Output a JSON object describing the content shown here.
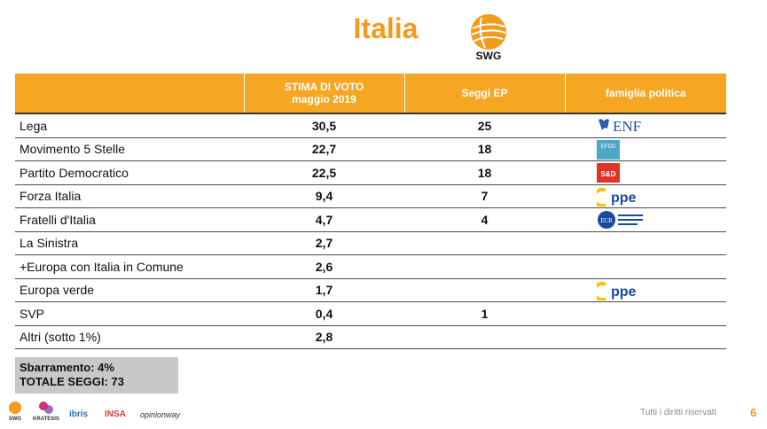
{
  "title": "Italia",
  "brand": "SWG",
  "table": {
    "headers": {
      "party": "",
      "vote_line1": "STIMA DI VOTO",
      "vote_line2": "maggio 2019",
      "seats": "Seggi EP",
      "family": "famiglia politica"
    },
    "rows": [
      {
        "party": "Lega",
        "vote": "30,5",
        "seats": "25",
        "family_icon": "enf-logo-icon",
        "family_label": "ENF"
      },
      {
        "party": "Movimento 5 Stelle",
        "vote": "22,7",
        "seats": "18",
        "family_icon": "efdd-logo-icon",
        "family_label": "EFDD"
      },
      {
        "party": "Partito Democratico",
        "vote": "22,5",
        "seats": "18",
        "family_icon": "sd-logo-icon",
        "family_label": "S&D"
      },
      {
        "party": "Forza Italia",
        "vote": "9,4",
        "seats": "7",
        "family_icon": "ppe-logo-icon",
        "family_label": "ppe"
      },
      {
        "party": "Fratelli d'Italia",
        "vote": "4,7",
        "seats": "4",
        "family_icon": "ecr-logo-icon",
        "family_label": "ECR"
      },
      {
        "party": "La Sinistra",
        "vote": "2,7",
        "seats": "",
        "family_icon": "",
        "family_label": ""
      },
      {
        "party": "+Europa con Italia in Comune",
        "vote": "2,6",
        "seats": "",
        "family_icon": "",
        "family_label": ""
      },
      {
        "party": "Europa verde",
        "vote": "1,7",
        "seats": "",
        "family_icon": "ppe-logo-icon",
        "family_label": "ppe"
      },
      {
        "party": "SVP",
        "vote": "0,4",
        "seats": "1",
        "family_icon": "",
        "family_label": ""
      },
      {
        "party": "Altri (sotto 1%)",
        "vote": "2,8",
        "seats": "",
        "family_icon": "",
        "family_label": ""
      }
    ]
  },
  "summary": {
    "line1": "Sbarramento: 4%",
    "line2": "TOTALE SEGGI: 73"
  },
  "footer": {
    "logos": [
      "SWG",
      "KRATESIS",
      "ibris",
      "INSA",
      "opinionway"
    ],
    "rights": "Tutti i diritti riservati",
    "page": "6"
  },
  "colors": {
    "accent": "#f5a623",
    "title": "#f39a1f",
    "summary_bg": "#c8c8c8"
  }
}
